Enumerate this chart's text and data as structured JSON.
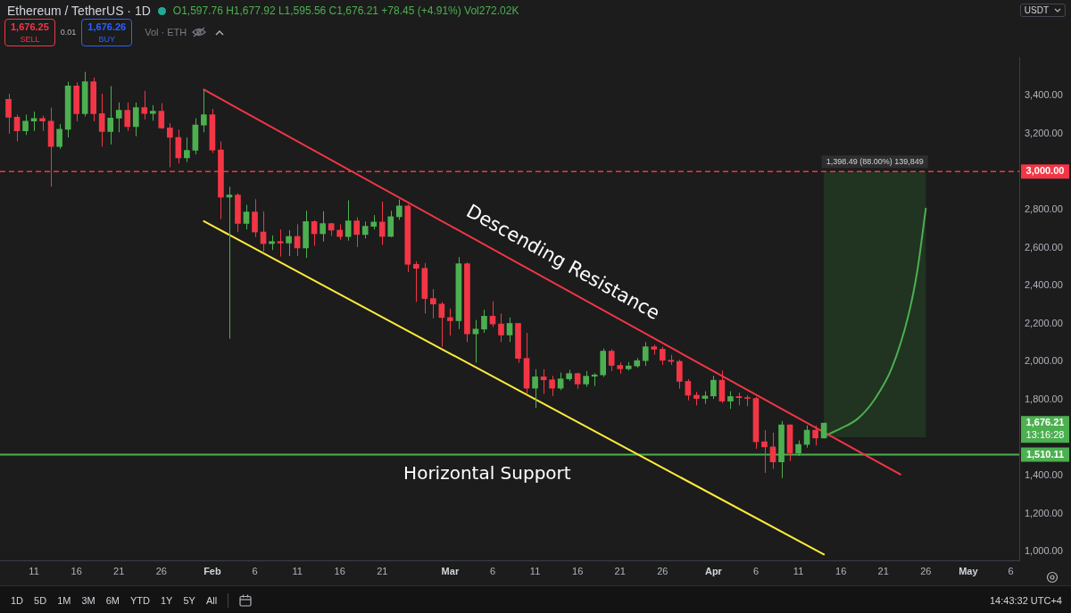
{
  "chart_data": {
    "type": "candlestick",
    "title": "Ethereum / TetherUS · 1D",
    "ylabel": "USDT",
    "x": [
      "--01-08",
      "--01-09",
      "--01-10",
      "--01-11",
      "--01-12",
      "--01-13",
      "--01-14",
      "--01-15",
      "--01-16",
      "--01-17",
      "--01-18",
      "--01-19",
      "--01-20",
      "--01-21",
      "--01-22",
      "--01-23",
      "--01-24",
      "--01-25",
      "--01-26",
      "--01-27",
      "--01-28",
      "--01-29",
      "--01-30",
      "--01-31",
      "--02-01",
      "--02-02",
      "--02-03",
      "--02-04",
      "--02-05",
      "--02-06",
      "--02-07",
      "--02-08",
      "--02-09",
      "--02-10",
      "--02-11",
      "--02-12",
      "--02-13",
      "--02-14",
      "--02-15",
      "--02-16",
      "--02-17",
      "--02-18",
      "--02-19",
      "--02-20",
      "--02-21",
      "--02-22",
      "--02-23",
      "--02-24",
      "--02-25",
      "--02-26",
      "--02-27",
      "--02-28",
      "--03-01",
      "--03-02",
      "--03-03",
      "--03-04",
      "--03-05",
      "--03-06",
      "--03-07",
      "--03-08",
      "--03-09",
      "--03-10",
      "--03-11",
      "--03-12",
      "--03-13",
      "--03-14",
      "--03-15",
      "--03-16",
      "--03-17",
      "--03-18",
      "--03-19",
      "--03-20",
      "--03-21",
      "--03-22",
      "--03-23",
      "--03-24",
      "--03-25",
      "--03-26",
      "--03-27",
      "--03-28",
      "--03-29",
      "--03-30",
      "--03-31",
      "--04-01",
      "--04-02",
      "--04-03",
      "--04-04",
      "--04-05",
      "--04-06",
      "--04-07",
      "--04-08",
      "--04-09",
      "--04-10",
      "--04-11",
      "--04-12",
      "--04-13",
      "--04-14"
    ],
    "ohlc": [
      [
        3380,
        3410,
        3200,
        3286
      ],
      [
        3286,
        3300,
        3159,
        3214
      ],
      [
        3214,
        3300,
        3193,
        3266
      ],
      [
        3266,
        3316,
        3214,
        3279
      ],
      [
        3279,
        3295,
        3214,
        3266
      ],
      [
        3266,
        3337,
        2921,
        3132
      ],
      [
        3132,
        3250,
        3120,
        3223
      ],
      [
        3223,
        3473,
        3180,
        3451
      ],
      [
        3451,
        3470,
        3265,
        3305
      ],
      [
        3305,
        3525,
        3290,
        3473
      ],
      [
        3473,
        3495,
        3265,
        3305
      ],
      [
        3305,
        3410,
        3132,
        3211
      ],
      [
        3211,
        3450,
        3143,
        3282
      ],
      [
        3282,
        3364,
        3207,
        3323
      ],
      [
        3323,
        3364,
        3214,
        3237
      ],
      [
        3237,
        3364,
        3186,
        3337
      ],
      [
        3337,
        3425,
        3275,
        3306
      ],
      [
        3306,
        3350,
        3268,
        3318
      ],
      [
        3318,
        3360,
        3225,
        3230
      ],
      [
        3230,
        3255,
        3023,
        3180
      ],
      [
        3180,
        3221,
        3043,
        3073
      ],
      [
        3073,
        3180,
        3050,
        3112
      ],
      [
        3112,
        3281,
        3091,
        3245
      ],
      [
        3245,
        3432,
        3207,
        3300
      ],
      [
        3300,
        3330,
        3098,
        3114
      ],
      [
        3114,
        3159,
        2750,
        2866
      ],
      [
        2866,
        2920,
        2120,
        2877
      ],
      [
        2877,
        2886,
        2682,
        2727
      ],
      [
        2727,
        2825,
        2696,
        2787
      ],
      [
        2787,
        2855,
        2655,
        2682
      ],
      [
        2682,
        2791,
        2580,
        2621
      ],
      [
        2621,
        2664,
        2587,
        2632
      ],
      [
        2632,
        2695,
        2553,
        2624
      ],
      [
        2624,
        2692,
        2555,
        2659
      ],
      [
        2659,
        2723,
        2555,
        2598
      ],
      [
        2598,
        2794,
        2546,
        2737
      ],
      [
        2737,
        2744,
        2610,
        2673
      ],
      [
        2673,
        2791,
        2632,
        2726
      ],
      [
        2726,
        2730,
        2662,
        2692
      ],
      [
        2692,
        2723,
        2641,
        2658
      ],
      [
        2658,
        2849,
        2637,
        2741
      ],
      [
        2741,
        2760,
        2603,
        2669
      ],
      [
        2669,
        2737,
        2648,
        2712
      ],
      [
        2712,
        2771,
        2696,
        2735
      ],
      [
        2735,
        2842,
        2614,
        2659
      ],
      [
        2659,
        2794,
        2655,
        2763
      ],
      [
        2763,
        2853,
        2746,
        2819
      ],
      [
        2819,
        2828,
        2471,
        2512
      ],
      [
        2512,
        2528,
        2314,
        2491
      ],
      [
        2491,
        2519,
        2253,
        2332
      ],
      [
        2332,
        2382,
        2228,
        2303
      ],
      [
        2303,
        2314,
        2078,
        2232
      ],
      [
        2232,
        2280,
        2137,
        2215
      ],
      [
        2215,
        2550,
        2171,
        2515
      ],
      [
        2515,
        2523,
        2103,
        2146
      ],
      [
        2146,
        2219,
        1994,
        2171
      ],
      [
        2171,
        2273,
        2151,
        2239
      ],
      [
        2239,
        2317,
        2182,
        2198
      ],
      [
        2198,
        2253,
        2103,
        2140
      ],
      [
        2140,
        2232,
        2103,
        2201
      ],
      [
        2201,
        2203,
        1994,
        2017
      ],
      [
        2017,
        2151,
        1830,
        1860
      ],
      [
        1860,
        1960,
        1755,
        1920
      ],
      [
        1920,
        1960,
        1830,
        1904
      ],
      [
        1904,
        1925,
        1819,
        1860
      ],
      [
        1860,
        1942,
        1850,
        1909
      ],
      [
        1909,
        1957,
        1898,
        1937
      ],
      [
        1937,
        1942,
        1857,
        1882
      ],
      [
        1882,
        1950,
        1868,
        1923
      ],
      [
        1923,
        1939,
        1871,
        1930
      ],
      [
        1930,
        2069,
        1919,
        2055
      ],
      [
        2055,
        2065,
        1950,
        1980
      ],
      [
        1980,
        1996,
        1936,
        1962
      ],
      [
        1962,
        1998,
        1953,
        1977
      ],
      [
        1977,
        2018,
        1967,
        2005
      ],
      [
        2005,
        2103,
        1977,
        2078
      ],
      [
        2078,
        2089,
        2037,
        2065
      ],
      [
        2065,
        2078,
        1983,
        2007
      ],
      [
        2007,
        2035,
        1983,
        2001
      ],
      [
        2001,
        2010,
        1857,
        1896
      ],
      [
        1896,
        1908,
        1796,
        1823
      ],
      [
        1823,
        1841,
        1769,
        1806
      ],
      [
        1806,
        1844,
        1778,
        1819
      ],
      [
        1819,
        1925,
        1803,
        1902
      ],
      [
        1902,
        1953,
        1782,
        1792
      ],
      [
        1792,
        1844,
        1751,
        1816
      ],
      [
        1816,
        1837,
        1769,
        1810
      ],
      [
        1810,
        1823,
        1765,
        1806
      ],
      [
        1806,
        1814,
        1541,
        1578
      ],
      [
        1578,
        1639,
        1414,
        1551
      ],
      [
        1551,
        1626,
        1435,
        1472
      ],
      [
        1472,
        1687,
        1387,
        1667
      ],
      [
        1667,
        1669,
        1476,
        1519
      ],
      [
        1519,
        1585,
        1503,
        1564
      ],
      [
        1564,
        1664,
        1547,
        1639
      ],
      [
        1639,
        1664,
        1558,
        1597.76
      ],
      [
        1597.76,
        1677.92,
        1595.56,
        1676.21
      ]
    ],
    "colors": [
      "#f23645",
      "#f23645",
      "#4caf50",
      "#4caf50",
      "#f23645",
      "#f23645",
      "#4caf50",
      "#4caf50",
      "#f23645",
      "#4caf50",
      "#f23645",
      "#f23645",
      "#4caf50",
      "#4caf50",
      "#f23645",
      "#4caf50",
      "#f23645",
      "#4caf50",
      "#f23645",
      "#f23645",
      "#f23645",
      "#4caf50",
      "#4caf50",
      "#4caf50",
      "#f23645",
      "#f23645",
      "#4caf50",
      "#f23645",
      "#4caf50",
      "#f23645",
      "#f23645",
      "#4caf50",
      "#f23645",
      "#4caf50",
      "#f23645",
      "#4caf50",
      "#f23645",
      "#4caf50",
      "#f23645",
      "#f23645",
      "#4caf50",
      "#f23645",
      "#4caf50",
      "#4caf50",
      "#f23645",
      "#4caf50",
      "#4caf50",
      "#f23645",
      "#f23645",
      "#f23645",
      "#f23645",
      "#f23645",
      "#f23645",
      "#4caf50",
      "#f23645",
      "#4caf50",
      "#4caf50",
      "#f23645",
      "#f23645",
      "#4caf50",
      "#f23645",
      "#f23645",
      "#4caf50",
      "#f23645",
      "#f23645",
      "#4caf50",
      "#4caf50",
      "#f23645",
      "#4caf50",
      "#4caf50",
      "#4caf50",
      "#f23645",
      "#f23645",
      "#4caf50",
      "#4caf50",
      "#4caf50",
      "#f23645",
      "#f23645",
      "#f23645",
      "#f23645",
      "#f23645",
      "#f23645",
      "#4caf50",
      "#4caf50",
      "#f23645",
      "#4caf50",
      "#f23645",
      "#f23645",
      "#f23645",
      "#f23645",
      "#f23645",
      "#4caf50",
      "#f23645",
      "#4caf50",
      "#4caf50",
      "#f23645",
      "#4caf50"
    ],
    "series": [
      {
        "type": "line",
        "name": "Descending Resistance",
        "color": "#f23645",
        "x": [
          "--01-31",
          "--04-23"
        ],
        "values": [
          3432,
          1406
        ]
      },
      {
        "type": "line",
        "color": "#ffeb3b",
        "x": [
          "--01-31",
          "--04-14"
        ],
        "values": [
          2739,
          985
        ]
      },
      {
        "type": "line",
        "color": "#4caf50",
        "x": [
          "--04-14",
          "--04-16",
          "--04-18",
          "--04-20",
          "--04-22",
          "--04-24",
          "--04-25",
          "--04-26"
        ],
        "values": [
          1607,
          1648,
          1700,
          1803,
          1966,
          2253,
          2478,
          2805
        ]
      }
    ],
    "xlim": [
      "--01-07",
      "--05-07"
    ],
    "xticks": [
      {
        "value": "--01-11",
        "label": "11"
      },
      {
        "value": "--01-16",
        "label": "16"
      },
      {
        "value": "--01-21",
        "label": "21"
      },
      {
        "value": "--01-26",
        "label": "26"
      },
      {
        "value": "--02-01",
        "label": "Feb"
      },
      {
        "value": "--02-06",
        "label": "6"
      },
      {
        "value": "--02-11",
        "label": "11"
      },
      {
        "value": "--02-16",
        "label": "16"
      },
      {
        "value": "--02-21",
        "label": "21"
      },
      {
        "value": "--03-01",
        "label": "Mar"
      },
      {
        "value": "--03-06",
        "label": "6"
      },
      {
        "value": "--03-11",
        "label": "11"
      },
      {
        "value": "--03-16",
        "label": "16"
      },
      {
        "value": "--03-21",
        "label": "21"
      },
      {
        "value": "--03-26",
        "label": "26"
      },
      {
        "value": "--04-01",
        "label": "Apr"
      },
      {
        "value": "--04-06",
        "label": "6"
      },
      {
        "value": "--04-11",
        "label": "11"
      },
      {
        "value": "--04-16",
        "label": "16"
      },
      {
        "value": "--04-21",
        "label": "21"
      },
      {
        "value": "--04-26",
        "label": "26"
      },
      {
        "value": "--05-01",
        "label": "May"
      },
      {
        "value": "--05-06",
        "label": "6"
      }
    ],
    "ylim": [
      950,
      3600
    ],
    "yticks": [
      {
        "value": 1000,
        "label": "1,000.00"
      },
      {
        "value": 1200,
        "label": "1,200.00"
      },
      {
        "value": 1400,
        "label": "1,400.00"
      },
      {
        "value": 1800,
        "label": "1,800.00"
      },
      {
        "value": 2000,
        "label": "2,000.00"
      },
      {
        "value": 2200,
        "label": "2,200.00"
      },
      {
        "value": 2400,
        "label": "2,400.00"
      },
      {
        "value": 2600,
        "label": "2,600.00"
      },
      {
        "value": 2800,
        "label": "2,800.00"
      },
      {
        "value": 3200,
        "label": "3,200.00"
      },
      {
        "value": 3400,
        "label": "3,400.00"
      }
    ],
    "ref_lines": [
      {
        "axis": "y",
        "value": 3000,
        "label": "3,000.00",
        "color": "#f23645",
        "line_style": "dashed"
      },
      {
        "axis": "y",
        "value": 1510.11,
        "label": "1,510.11",
        "color": "#4caf50"
      }
    ],
    "bands": [
      {
        "axis": "y",
        "from": 1601.51,
        "to": 3000,
        "color": "#213321"
      }
    ],
    "annotations": [
      "O1,597.76 H1,677.92 L1,595.56 C1,676.21 +78.45 (+4.91%) Vol272.02K",
      "1,676.25",
      "SELL",
      "0.01",
      "1,676.26",
      "BUY",
      "Vol · ETH",
      "1D",
      "5D",
      "1M",
      "3M",
      "6M",
      "YTD",
      "1Y",
      "5Y",
      "All",
      "14:43:32 UTC+4",
      "1,676.21",
      "13:16:28",
      "Horizontal Support",
      "1,398.49 (88.00%) 139,849"
    ]
  }
}
